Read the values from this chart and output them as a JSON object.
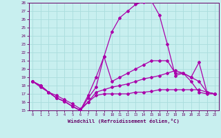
{
  "xlabel": "Windchill (Refroidissement éolien,°C)",
  "ylabel": "",
  "xlim": [
    -0.5,
    23.5
  ],
  "ylim": [
    15,
    28
  ],
  "yticks": [
    15,
    16,
    17,
    18,
    19,
    20,
    21,
    22,
    23,
    24,
    25,
    26,
    27,
    28
  ],
  "xticks": [
    0,
    1,
    2,
    3,
    4,
    5,
    6,
    7,
    8,
    9,
    10,
    11,
    12,
    13,
    14,
    15,
    16,
    17,
    18,
    19,
    20,
    21,
    22,
    23
  ],
  "background_color": "#c8efef",
  "grid_color": "#aadddd",
  "line_color": "#aa00aa",
  "figsize": [
    3.2,
    2.0
  ],
  "dpi": 100,
  "lines": [
    {
      "x": [
        0,
        1,
        2,
        3,
        4,
        5,
        6,
        7,
        8,
        9,
        10,
        11,
        12,
        13,
        14,
        15,
        16,
        17,
        18,
        19,
        20,
        21,
        22,
        23
      ],
      "y": [
        18.5,
        18.0,
        17.2,
        16.5,
        16.1,
        15.5,
        15.0,
        16.8,
        19.0,
        21.5,
        24.5,
        26.2,
        27.0,
        27.8,
        28.1,
        28.2,
        26.5,
        23.0,
        19.2,
        19.5,
        18.5,
        17.2,
        17.0,
        17.0
      ]
    },
    {
      "x": [
        0,
        1,
        2,
        3,
        4,
        5,
        6,
        7,
        8,
        9,
        10,
        11,
        12,
        13,
        14,
        15,
        16,
        17,
        18,
        19,
        20,
        21,
        22,
        23
      ],
      "y": [
        18.5,
        18.0,
        17.2,
        16.5,
        16.1,
        15.5,
        15.0,
        16.5,
        17.8,
        21.5,
        18.5,
        19.0,
        19.5,
        20.0,
        20.5,
        21.0,
        21.0,
        21.0,
        19.5,
        19.5,
        19.0,
        20.8,
        17.2,
        17.0
      ]
    },
    {
      "x": [
        0,
        1,
        2,
        3,
        4,
        5,
        6,
        7,
        8,
        9,
        10,
        11,
        12,
        13,
        14,
        15,
        16,
        17,
        18,
        19,
        20,
        21,
        22,
        23
      ],
      "y": [
        18.5,
        18.0,
        17.2,
        16.5,
        16.1,
        15.5,
        15.0,
        16.0,
        17.2,
        17.5,
        17.8,
        18.0,
        18.2,
        18.5,
        18.8,
        19.0,
        19.2,
        19.5,
        19.8,
        19.5,
        19.0,
        18.5,
        17.2,
        17.0
      ]
    },
    {
      "x": [
        0,
        1,
        2,
        3,
        4,
        5,
        6,
        7,
        8,
        9,
        10,
        11,
        12,
        13,
        14,
        15,
        16,
        17,
        18,
        19,
        20,
        21,
        22,
        23
      ],
      "y": [
        18.5,
        17.8,
        17.2,
        16.8,
        16.3,
        15.8,
        15.2,
        16.0,
        16.8,
        17.0,
        17.0,
        17.0,
        17.0,
        17.2,
        17.2,
        17.3,
        17.5,
        17.5,
        17.5,
        17.5,
        17.5,
        17.5,
        17.2,
        17.0
      ]
    }
  ]
}
